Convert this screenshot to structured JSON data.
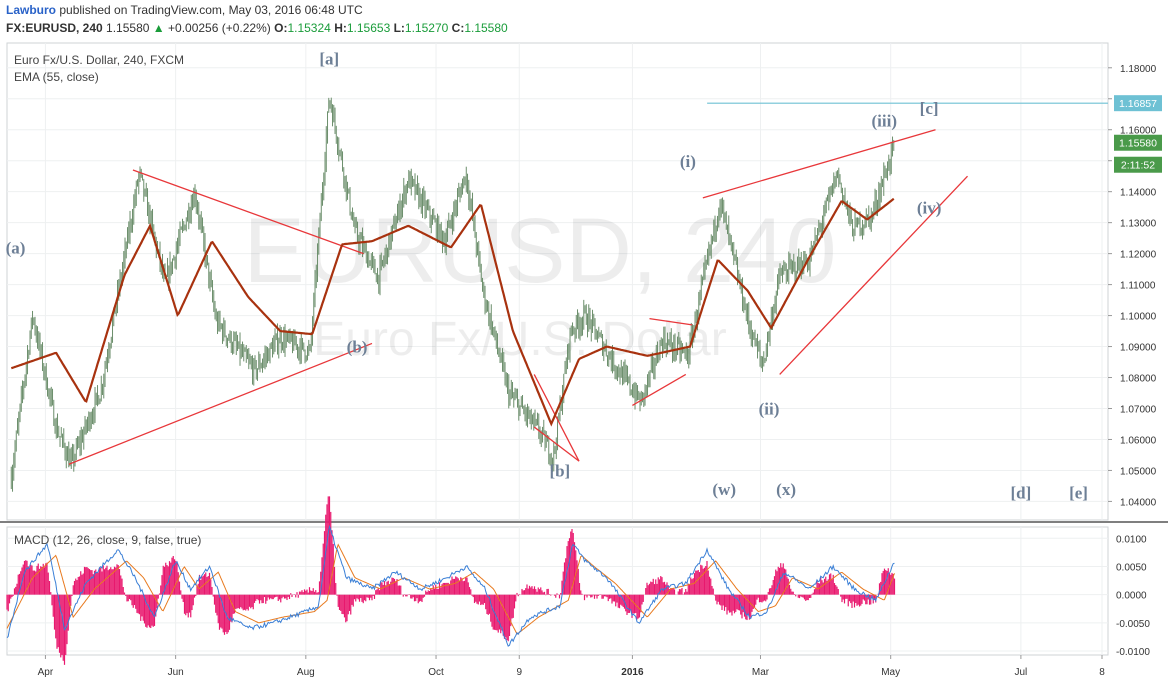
{
  "header": {
    "author": "Lawburo",
    "published_text": "published on TradingView.com, May 03, 2016 06:48 UTC",
    "symbol": "FX:EURUSD, 240",
    "last": "1.15580",
    "change": "+0.00256 (+0.22%)",
    "o_label": "O:",
    "o": "1.15324",
    "h_label": "H:",
    "h": "1.15653",
    "l_label": "L:",
    "l": "1.15270",
    "c_label": "C:",
    "c": "1.15580",
    "chart_title": "Euro Fx/U.S. Dollar, 240, FXCM",
    "ema_label": "EMA (55, close)",
    "macd_label": "MACD (12, 26, close, 9, false, true)"
  },
  "watermark": {
    "big": "EURUSD, 240",
    "small": "Euro Fx/U.S. Dollar"
  },
  "colors": {
    "candle": "#6b8e6b",
    "ema": "#a8320f",
    "trend": "#e8373a",
    "wave": "#6d7f96",
    "macd": "#3a7fd6",
    "signal": "#e87a1f",
    "hist": "#e8186e",
    "level": "#6ec1d4"
  },
  "chart_data": [
    {
      "type": "line",
      "title": "Euro Fx/U.S. Dollar, 240, FXCM",
      "x_ticks": [
        "Apr",
        "Jun",
        "Aug",
        "Oct",
        "9",
        "2016",
        "Mar",
        "May",
        "Jul",
        "8"
      ],
      "y_ticks": [
        "1.18000",
        "1.17000",
        "1.16000",
        "1.15000",
        "1.14000",
        "1.13000",
        "1.12000",
        "1.11000",
        "1.10000",
        "1.09000",
        "1.08000",
        "1.07000",
        "1.06000",
        "1.05000",
        "1.04000"
      ],
      "ylim": [
        1.034,
        1.188
      ],
      "series": [
        {
          "name": "EURUSD",
          "x": [
            "2015-03-16",
            "2015-03-26",
            "2015-04-06",
            "2015-04-13",
            "2015-04-27",
            "2015-05-15",
            "2015-05-27",
            "2015-06-10",
            "2015-06-20",
            "2015-07-08",
            "2015-07-20",
            "2015-08-03",
            "2015-08-12",
            "2015-08-24",
            "2015-09-04",
            "2015-09-18",
            "2015-10-05",
            "2015-10-15",
            "2015-10-23",
            "2015-11-04",
            "2015-11-18",
            "2015-11-25",
            "2015-12-03",
            "2015-12-10",
            "2015-12-22",
            "2016-01-05",
            "2016-01-15",
            "2016-01-27",
            "2016-02-11",
            "2016-02-25",
            "2016-03-02",
            "2016-03-10",
            "2016-03-24",
            "2016-04-06",
            "2016-04-13",
            "2016-04-22",
            "2016-05-03"
          ],
          "values": [
            1.048,
            1.1,
            1.064,
            1.052,
            1.076,
            1.146,
            1.11,
            1.14,
            1.098,
            1.082,
            1.093,
            1.088,
            1.171,
            1.127,
            1.112,
            1.144,
            1.124,
            1.146,
            1.108,
            1.075,
            1.063,
            1.054,
            1.095,
            1.1,
            1.086,
            1.072,
            1.092,
            1.087,
            1.137,
            1.096,
            1.084,
            1.113,
            1.118,
            1.146,
            1.128,
            1.132,
            1.1558
          ]
        },
        {
          "name": "EMA (55, close)",
          "x": [
            "2015-03-16",
            "2015-04-06",
            "2015-04-20",
            "2015-05-08",
            "2015-05-20",
            "2015-06-02",
            "2015-06-18",
            "2015-07-05",
            "2015-07-20",
            "2015-08-04",
            "2015-08-18",
            "2015-09-01",
            "2015-09-18",
            "2015-10-08",
            "2015-10-22",
            "2015-11-06",
            "2015-11-24",
            "2015-12-07",
            "2015-12-20",
            "2016-01-08",
            "2016-01-28",
            "2016-02-10",
            "2016-02-24",
            "2016-03-06",
            "2016-03-24",
            "2016-04-08",
            "2016-04-20",
            "2016-05-03"
          ],
          "values": [
            1.083,
            1.088,
            1.072,
            1.113,
            1.129,
            1.1,
            1.124,
            1.106,
            1.095,
            1.094,
            1.123,
            1.124,
            1.129,
            1.122,
            1.136,
            1.095,
            1.065,
            1.086,
            1.09,
            1.087,
            1.09,
            1.118,
            1.108,
            1.096,
            1.119,
            1.137,
            1.131,
            1.138
          ]
        }
      ],
      "annotations": [
        {
          "text": "(a)",
          "x": "2015-03-18",
          "y": 1.12
        },
        {
          "text": "[a]",
          "x": "2015-08-12",
          "y": 1.181
        },
        {
          "text": "(b)",
          "x": "2015-08-25",
          "y": 1.088
        },
        {
          "text": "[b]",
          "x": "2015-11-28",
          "y": 1.048
        },
        {
          "text": "(i)",
          "x": "2016-01-27",
          "y": 1.148
        },
        {
          "text": "(ii)",
          "x": "2016-03-05",
          "y": 1.068
        },
        {
          "text": "(iii)",
          "x": "2016-04-28",
          "y": 1.161
        },
        {
          "text": "[c]",
          "x": "2016-05-19",
          "y": 1.165
        },
        {
          "text": "(iv)",
          "x": "2016-05-19",
          "y": 1.133
        },
        {
          "text": "(w)",
          "x": "2016-02-13",
          "y": 1.042
        },
        {
          "text": "(x)",
          "x": "2016-03-13",
          "y": 1.042
        },
        {
          "text": "[d]",
          "x": "2016-07-01",
          "y": 1.041
        },
        {
          "text": "[e]",
          "x": "2016-07-28",
          "y": 1.041
        }
      ],
      "trendlines": [
        {
          "from": [
            "2015-05-12",
            1.147
          ],
          "to": [
            "2015-08-28",
            1.12
          ]
        },
        {
          "from": [
            "2015-04-12",
            1.052
          ],
          "to": [
            "2015-09-01",
            1.091
          ]
        },
        {
          "from": [
            "2015-11-16",
            1.081
          ],
          "to": [
            "2015-12-07",
            1.053
          ]
        },
        {
          "from": [
            "2015-11-16",
            1.064
          ],
          "to": [
            "2015-12-07",
            1.053
          ]
        },
        {
          "from": [
            "2016-01-01",
            1.071
          ],
          "to": [
            "2016-01-26",
            1.081
          ]
        },
        {
          "from": [
            "2016-01-09",
            1.099
          ],
          "to": [
            "2016-01-29",
            1.097
          ]
        },
        {
          "from": [
            "2016-02-03",
            1.138
          ],
          "to": [
            "2016-05-22",
            1.16
          ]
        },
        {
          "from": [
            "2016-03-10",
            1.081
          ],
          "to": [
            "2016-06-06",
            1.145
          ]
        }
      ],
      "level_line": {
        "value": 1.16857,
        "from": "2016-02-05"
      },
      "price_tags": [
        {
          "text": "1.16857",
          "value": 1.16857,
          "color": "#6ec1d4"
        },
        {
          "text": "1.15580",
          "value": 1.1558,
          "color": "#4a9a4a"
        },
        {
          "text": "2:11:52",
          "value": 1.1487,
          "color": "#4a9a4a"
        }
      ]
    },
    {
      "type": "line",
      "title": "MACD (12, 26, close, 9, false, true)",
      "y_ticks": [
        "0.0100",
        "0.0050",
        "0.0000",
        "-0.0050",
        "-0.0100"
      ],
      "ylim": [
        -0.0107,
        0.012
      ],
      "series": [
        {
          "name": "MACD",
          "x": [
            "2015-03-14",
            "2015-03-22",
            "2015-04-02",
            "2015-04-10",
            "2015-04-20",
            "2015-05-05",
            "2015-05-13",
            "2015-05-22",
            "2015-06-01",
            "2015-06-08",
            "2015-06-17",
            "2015-06-25",
            "2015-07-06",
            "2015-07-17",
            "2015-08-01",
            "2015-08-07",
            "2015-08-12",
            "2015-08-20",
            "2015-09-01",
            "2015-09-12",
            "2015-09-24",
            "2015-10-06",
            "2015-10-15",
            "2015-10-24",
            "2015-11-04",
            "2015-11-14",
            "2015-11-28",
            "2015-12-04",
            "2015-12-10",
            "2015-12-20",
            "2016-01-04",
            "2016-01-15",
            "2016-01-26",
            "2016-02-05",
            "2016-02-15",
            "2016-02-25",
            "2016-03-04",
            "2016-03-12",
            "2016-03-24",
            "2016-04-04",
            "2016-04-14",
            "2016-04-24",
            "2016-05-03"
          ],
          "values": [
            -0.008,
            0.004,
            0.009,
            -0.006,
            0.002,
            0.008,
            0.003,
            -0.004,
            0.006,
            0.001,
            0.005,
            -0.004,
            -0.006,
            -0.005,
            -0.003,
            -0.002,
            0.012,
            0.003,
            0.001,
            0.004,
            0.001,
            0.003,
            0.005,
            0.001,
            -0.009,
            -0.004,
            -0.002,
            0.009,
            0.006,
            0.003,
            -0.005,
            0.001,
            0.002,
            0.008,
            0.001,
            -0.004,
            -0.003,
            0.004,
            0.001,
            0.005,
            0.001,
            -0.001,
            0.006
          ]
        },
        {
          "name": "Signal",
          "x": [
            "2015-03-14",
            "2015-03-26",
            "2015-04-06",
            "2015-04-14",
            "2015-04-24",
            "2015-05-09",
            "2015-05-17",
            "2015-05-26",
            "2015-06-05",
            "2015-06-12",
            "2015-06-21",
            "2015-06-29",
            "2015-07-10",
            "2015-07-21",
            "2015-08-05",
            "2015-08-11",
            "2015-08-16",
            "2015-08-24",
            "2015-09-05",
            "2015-09-16",
            "2015-09-28",
            "2015-10-10",
            "2015-10-19",
            "2015-10-28",
            "2015-11-08",
            "2015-11-18",
            "2015-12-02",
            "2015-12-08",
            "2015-12-14",
            "2015-12-24",
            "2016-01-08",
            "2016-01-19",
            "2016-01-30",
            "2016-02-09",
            "2016-02-19",
            "2016-02-29",
            "2016-03-08",
            "2016-03-16",
            "2016-03-28",
            "2016-04-08",
            "2016-04-18",
            "2016-04-28",
            "2016-05-03"
          ],
          "values": [
            -0.006,
            0.003,
            0.007,
            -0.004,
            0.001,
            0.006,
            0.003,
            -0.003,
            0.005,
            0.001,
            0.004,
            -0.003,
            -0.005,
            -0.004,
            -0.003,
            -0.001,
            0.009,
            0.003,
            0.001,
            0.003,
            0.001,
            0.002,
            0.004,
            0.001,
            -0.007,
            -0.004,
            -0.001,
            0.007,
            0.005,
            0.002,
            -0.004,
            0.001,
            0.002,
            0.006,
            0.001,
            -0.003,
            -0.002,
            0.003,
            0.001,
            0.004,
            0.001,
            -0.001,
            0.004
          ]
        }
      ]
    }
  ]
}
